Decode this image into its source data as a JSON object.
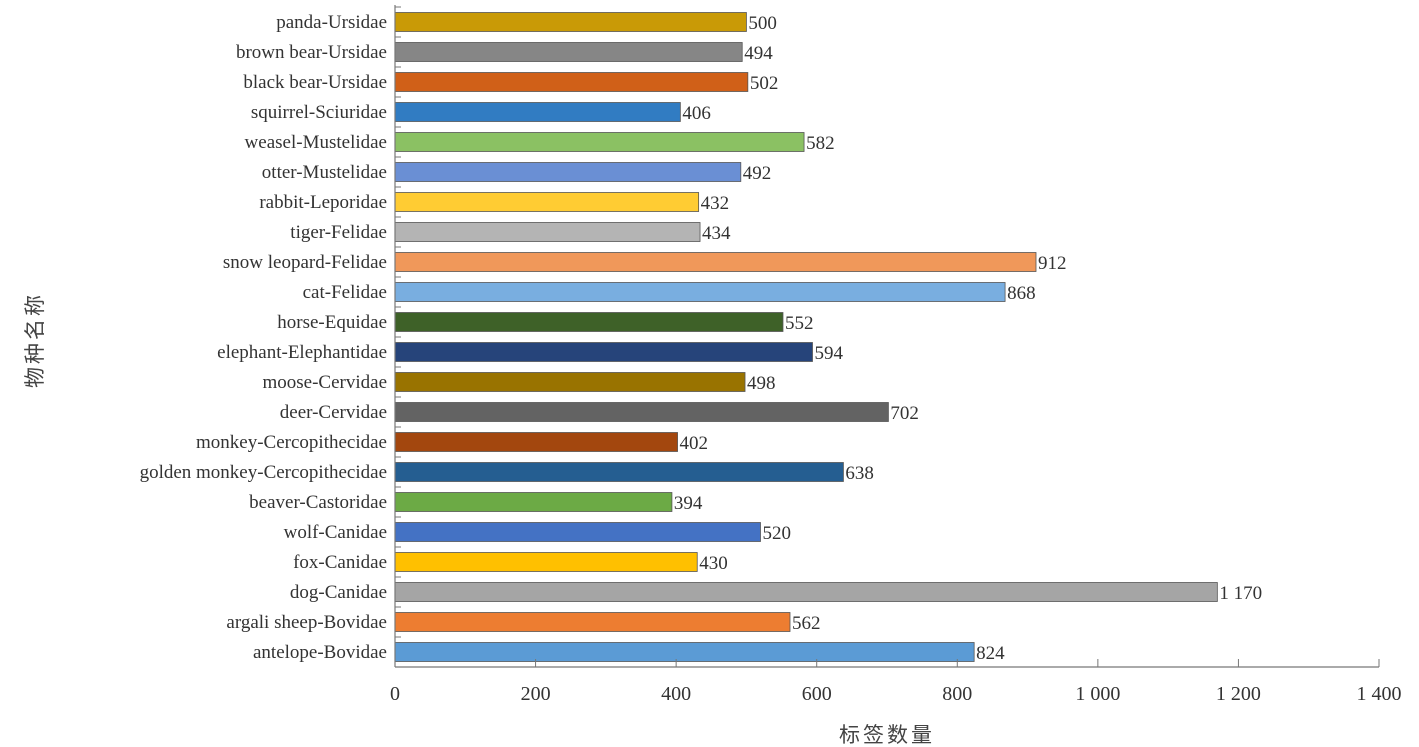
{
  "chart_data": {
    "type": "bar",
    "orientation": "horizontal",
    "title": "",
    "xlabel": "标签数量",
    "ylabel": "物种名称",
    "xlim": [
      0,
      1400
    ],
    "xticks": [
      0,
      200,
      400,
      600,
      800,
      1000,
      1200,
      1400
    ],
    "xtick_labels": [
      "0",
      "200",
      "400",
      "600",
      "800",
      "1 000",
      "1 200",
      "1 400"
    ],
    "grid": false,
    "categories": [
      "panda-Ursidae",
      "brown bear-Ursidae",
      "black bear-Ursidae",
      "squirrel-Sciuridae",
      "weasel-Mustelidae",
      "otter-Mustelidae",
      "rabbit-Leporidae",
      "tiger-Felidae",
      "snow leopard-Felidae",
      "cat-Felidae",
      "horse-Equidae",
      "elephant-Elephantidae",
      "moose-Cervidae",
      "deer-Cervidae",
      "monkey-Cercopithecidae",
      "golden monkey-Cercopithecidae",
      "beaver-Castoridae",
      "wolf-Canidae",
      "fox-Canidae",
      "dog-Canidae",
      "argali sheep-Bovidae",
      "antelope-Bovidae"
    ],
    "values": [
      500,
      494,
      502,
      406,
      582,
      492,
      432,
      434,
      912,
      868,
      552,
      594,
      498,
      702,
      402,
      638,
      394,
      520,
      430,
      1170,
      562,
      824
    ],
    "value_labels": [
      "500",
      "494",
      "502",
      "406",
      "582",
      "492",
      "432",
      "434",
      "912",
      "868",
      "552",
      "594",
      "498",
      "702",
      "402",
      "638",
      "394",
      "520",
      "430",
      "1 170",
      "562",
      "824"
    ],
    "colors": [
      "#C99A06",
      "#868686",
      "#D06018",
      "#317CC2",
      "#8BC163",
      "#6A8FD4",
      "#FFCC33",
      "#B4B4B4",
      "#F0985A",
      "#79AEE0",
      "#3E6128",
      "#26447A",
      "#997300",
      "#636363",
      "#A3470E",
      "#255E91",
      "#6CAA45",
      "#4472C4",
      "#FFC000",
      "#A5A5A5",
      "#ED7D31",
      "#5B9BD5"
    ]
  }
}
